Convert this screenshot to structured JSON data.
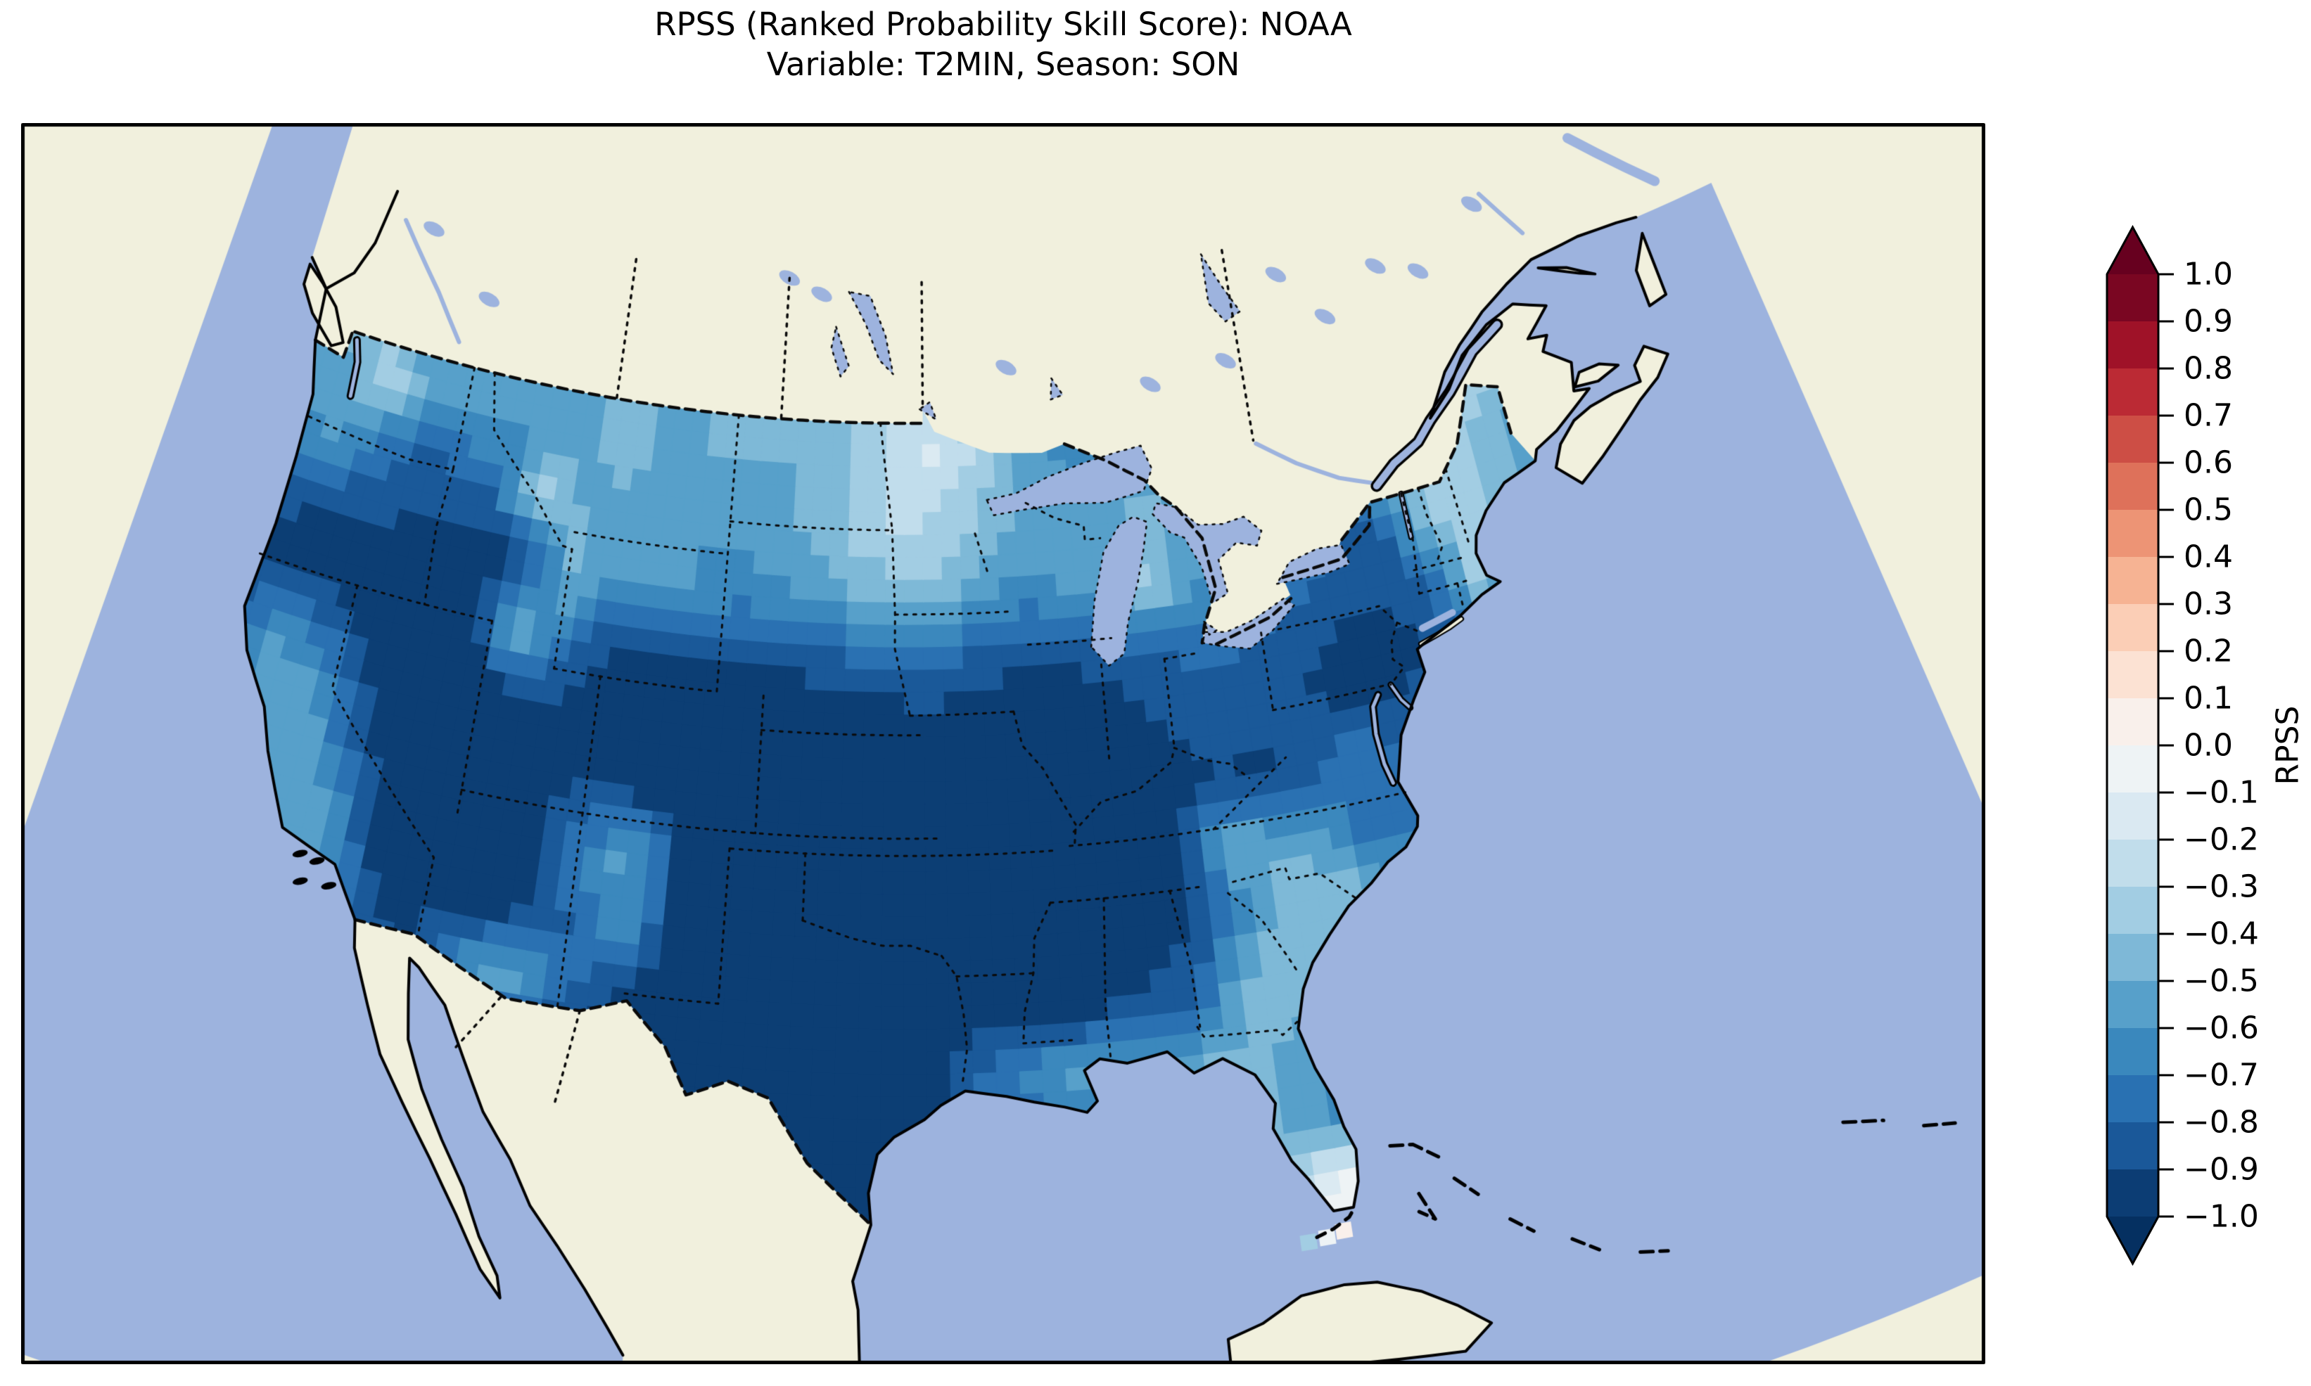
{
  "title": {
    "line1": "RPSS (Ranked Probability Skill Score): NOAA",
    "line2": "Variable: T2MIN, Season: SON"
  },
  "colorbar": {
    "label": "RPSS",
    "vmin": -1.0,
    "vmax": 1.0,
    "step": 0.1,
    "extend": "both",
    "colormap": "RdBu_r",
    "tick_labels": [
      "1.0",
      "0.9",
      "0.8",
      "0.7",
      "0.6",
      "0.5",
      "0.4",
      "0.3",
      "0.2",
      "0.1",
      "0.0",
      "−0.1",
      "−0.2",
      "−0.3",
      "−0.4",
      "−0.5",
      "−0.6",
      "−0.7",
      "−0.8",
      "−0.9",
      "−1.0"
    ],
    "cmap_anchors": [
      "#053061",
      "#2166ac",
      "#4393c3",
      "#92c5de",
      "#d1e5f0",
      "#f7f7f7",
      "#fddbc7",
      "#f4a582",
      "#d6604d",
      "#b2182b",
      "#67001f"
    ]
  },
  "map": {
    "colors": {
      "ocean": "#9db3de",
      "land": "#f1f0dd",
      "coast": "#000000",
      "border": "#0a0a0a",
      "frame": "#000000"
    }
  },
  "chart_data": {
    "type": "heatmap",
    "title": "RPSS (Ranked Probability Skill Score): NOAA",
    "subtitle": "Variable: T2MIN, Season: SON",
    "metric": "RPSS",
    "source_label": "NOAA",
    "variable": "T2MIN",
    "season": "SON",
    "colorbar": {
      "min": -1.0,
      "max": 1.0,
      "step": 0.1,
      "extend": "both",
      "colormap": "RdBu_r",
      "label": "RPSS"
    },
    "grid": {
      "lon_start": -125,
      "lon_step": 2,
      "lat_start": 50,
      "lat_step": -2,
      "n_lon": 30,
      "n_lat": 14,
      "values": [
        [
          -0.4,
          -0.3,
          -0.5,
          -0.6,
          -0.6,
          -0.6,
          -0.55,
          -0.55,
          -0.5,
          -0.5,
          -0.5,
          -0.5,
          -0.5,
          -0.45,
          -0.35,
          -0.25,
          -0.4,
          -0.5,
          -0.55,
          -0.6,
          -0.6,
          -0.6,
          -0.6,
          -0.6,
          -0.55,
          -0.5,
          -0.5,
          -0.45,
          -0.35,
          -0.4
        ],
        [
          -0.5,
          -0.55,
          -0.3,
          -0.5,
          -0.55,
          -0.6,
          -0.6,
          -0.55,
          -0.4,
          -0.55,
          -0.5,
          -0.5,
          -0.5,
          -0.45,
          -0.3,
          -0.15,
          -0.3,
          -0.5,
          -0.6,
          -0.65,
          -0.65,
          -0.6,
          -0.6,
          -0.6,
          -0.55,
          -0.5,
          -0.45,
          -0.4,
          -0.3,
          -0.35
        ],
        [
          -0.75,
          -0.55,
          -0.7,
          -0.85,
          -0.8,
          -0.75,
          -0.35,
          -0.5,
          -0.55,
          -0.6,
          -0.6,
          -0.55,
          -0.5,
          -0.4,
          -0.3,
          -0.3,
          -0.4,
          -0.5,
          -0.55,
          -0.6,
          -0.45,
          -0.55,
          -0.6,
          -0.6,
          -0.55,
          -0.5,
          -0.35,
          -0.35,
          -0.45,
          -0.55
        ],
        [
          -0.85,
          -0.9,
          -0.9,
          -0.9,
          -0.95,
          -0.95,
          -0.9,
          -0.45,
          -0.6,
          -0.55,
          -0.6,
          -0.65,
          -0.6,
          -0.55,
          -0.45,
          -0.45,
          -0.55,
          -0.65,
          -0.6,
          -0.5,
          -0.35,
          -0.6,
          -0.65,
          -0.7,
          -0.8,
          -0.9,
          -0.55,
          -0.3,
          -0.45,
          -0.6
        ],
        [
          -0.9,
          -0.95,
          -0.95,
          -0.95,
          -1.0,
          -1.0,
          -0.45,
          -0.7,
          -0.9,
          -0.9,
          -0.9,
          -0.9,
          -0.9,
          -0.85,
          -0.8,
          -0.75,
          -0.85,
          -0.9,
          -0.9,
          -0.85,
          -0.8,
          -0.75,
          -0.8,
          -0.85,
          -0.9,
          -0.9,
          -0.85,
          -0.4,
          -0.55,
          -0.7
        ],
        [
          -0.8,
          -0.6,
          -0.7,
          -0.9,
          -1.0,
          -1.0,
          -0.95,
          -0.9,
          -0.95,
          -0.95,
          -0.95,
          -1.0,
          -1.0,
          -1.0,
          -1.0,
          -1.0,
          -1.0,
          -1.0,
          -1.0,
          -0.95,
          -0.9,
          -0.85,
          -0.85,
          -0.9,
          -0.95,
          -0.95,
          -0.85,
          -0.8,
          -0.8,
          -0.8
        ],
        [
          -0.7,
          -0.55,
          -0.5,
          -0.8,
          -1.0,
          -1.0,
          -1.0,
          -0.95,
          -0.9,
          -0.95,
          -1.0,
          -1.0,
          -1.0,
          -1.0,
          -1.0,
          -1.0,
          -1.0,
          -1.0,
          -1.0,
          -1.0,
          -0.95,
          -0.9,
          -0.95,
          -0.8,
          -0.75,
          -0.8,
          -0.85,
          -0.85,
          -0.85,
          -0.85
        ],
        [
          -0.85,
          -0.5,
          -0.5,
          -0.6,
          -0.95,
          -1.0,
          -1.0,
          -0.95,
          -0.7,
          -0.55,
          -0.9,
          -1.0,
          -1.0,
          -1.0,
          -1.0,
          -1.0,
          -1.0,
          -1.0,
          -1.0,
          -1.0,
          -0.9,
          -0.5,
          -0.55,
          -0.65,
          -0.8,
          -0.75,
          -0.8,
          -0.85,
          -0.85,
          -0.85
        ],
        [
          -0.9,
          -0.7,
          -0.55,
          -0.6,
          -0.9,
          -0.95,
          -0.95,
          -0.95,
          -0.8,
          -0.6,
          -0.95,
          -1.0,
          -1.0,
          -1.0,
          -1.0,
          -1.0,
          -1.0,
          -1.0,
          -1.0,
          -0.95,
          -0.9,
          -0.7,
          -0.4,
          -0.4,
          -0.55,
          -0.65,
          -0.75,
          -0.8,
          -0.85,
          -0.85
        ],
        [
          -0.9,
          -0.85,
          -0.7,
          -0.6,
          -0.85,
          -0.9,
          -0.65,
          -0.5,
          -0.75,
          -0.9,
          -1.0,
          -1.0,
          -1.0,
          -1.0,
          -1.0,
          -1.0,
          -1.0,
          -1.0,
          -0.95,
          -0.9,
          -0.85,
          -0.45,
          -0.4,
          -0.5,
          -0.6,
          -0.7,
          -0.75,
          -0.8,
          -0.85,
          -0.85
        ],
        [
          -0.9,
          -0.9,
          -0.85,
          -0.8,
          -0.9,
          -1.0,
          -1.0,
          -1.0,
          -1.0,
          -1.0,
          -1.0,
          -1.0,
          -1.0,
          -1.0,
          -1.0,
          -0.95,
          -0.75,
          -0.6,
          -0.55,
          -0.6,
          -0.5,
          -0.45,
          -0.55,
          -0.65,
          -0.7,
          -0.75,
          -0.75,
          -0.8,
          -0.85,
          -0.85
        ],
        [
          -0.9,
          -0.9,
          -0.9,
          -0.85,
          -0.95,
          -1.0,
          -1.0,
          -1.0,
          -1.0,
          -1.0,
          -1.0,
          -1.0,
          -1.0,
          -1.0,
          -1.0,
          -0.95,
          -0.9,
          -0.85,
          -0.75,
          -0.6,
          -0.5,
          -0.45,
          -0.6,
          -0.8,
          -0.7,
          -0.7,
          -0.7,
          -0.75,
          -0.8,
          -0.8
        ],
        [
          -0.9,
          -0.9,
          -0.9,
          -0.9,
          -0.95,
          -1.0,
          -1.0,
          -1.0,
          -1.0,
          -1.0,
          -1.0,
          -1.0,
          -1.0,
          -1.0,
          -1.0,
          -0.95,
          -0.9,
          -0.85,
          -0.75,
          -0.6,
          -0.5,
          -0.35,
          -0.1,
          -0.05,
          -0.4,
          -0.5,
          -0.55,
          -0.6,
          -0.65,
          -0.7
        ],
        [
          -0.9,
          -0.9,
          -0.9,
          -0.9,
          -0.95,
          -1.0,
          -1.0,
          -1.0,
          -1.0,
          -1.0,
          -1.0,
          -1.0,
          -1.0,
          -1.0,
          -1.0,
          -0.95,
          -0.9,
          -0.85,
          -0.75,
          -0.6,
          -0.5,
          -0.25,
          0.05,
          0.05,
          -0.4,
          -0.5,
          -0.55,
          -0.6,
          -0.65,
          -0.7
        ]
      ]
    },
    "offshore_cells": [
      {
        "lon": -82.1,
        "lat": 24.45,
        "value": -0.35
      },
      {
        "lon": -81.45,
        "lat": 24.5,
        "value": -0.1
      },
      {
        "lon": -80.85,
        "lat": 24.6,
        "value": 0.05
      }
    ]
  }
}
